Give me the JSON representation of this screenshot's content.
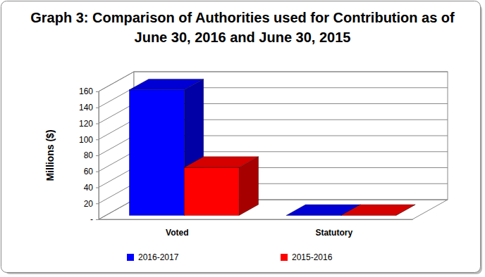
{
  "chart_data": {
    "type": "bar",
    "title": "Graph 3: Comparison of Authorities used for Contribution as of June 30, 2016 and June 30, 2015",
    "y_label": "Millions ($)",
    "categories": [
      "Voted",
      "Statutory"
    ],
    "series": [
      {
        "name": "2016-2017",
        "color": "#0000ff",
        "values": [
          157,
          0
        ]
      },
      {
        "name": "2015-2016",
        "color": "#ff0000",
        "values": [
          60,
          0
        ]
      }
    ],
    "ylim": [
      0,
      160
    ],
    "yticks": [
      {
        "value": 0,
        "label": "-"
      },
      20,
      40,
      60,
      80,
      100,
      120,
      140,
      160
    ],
    "grid": true,
    "legend": "bottom"
  }
}
